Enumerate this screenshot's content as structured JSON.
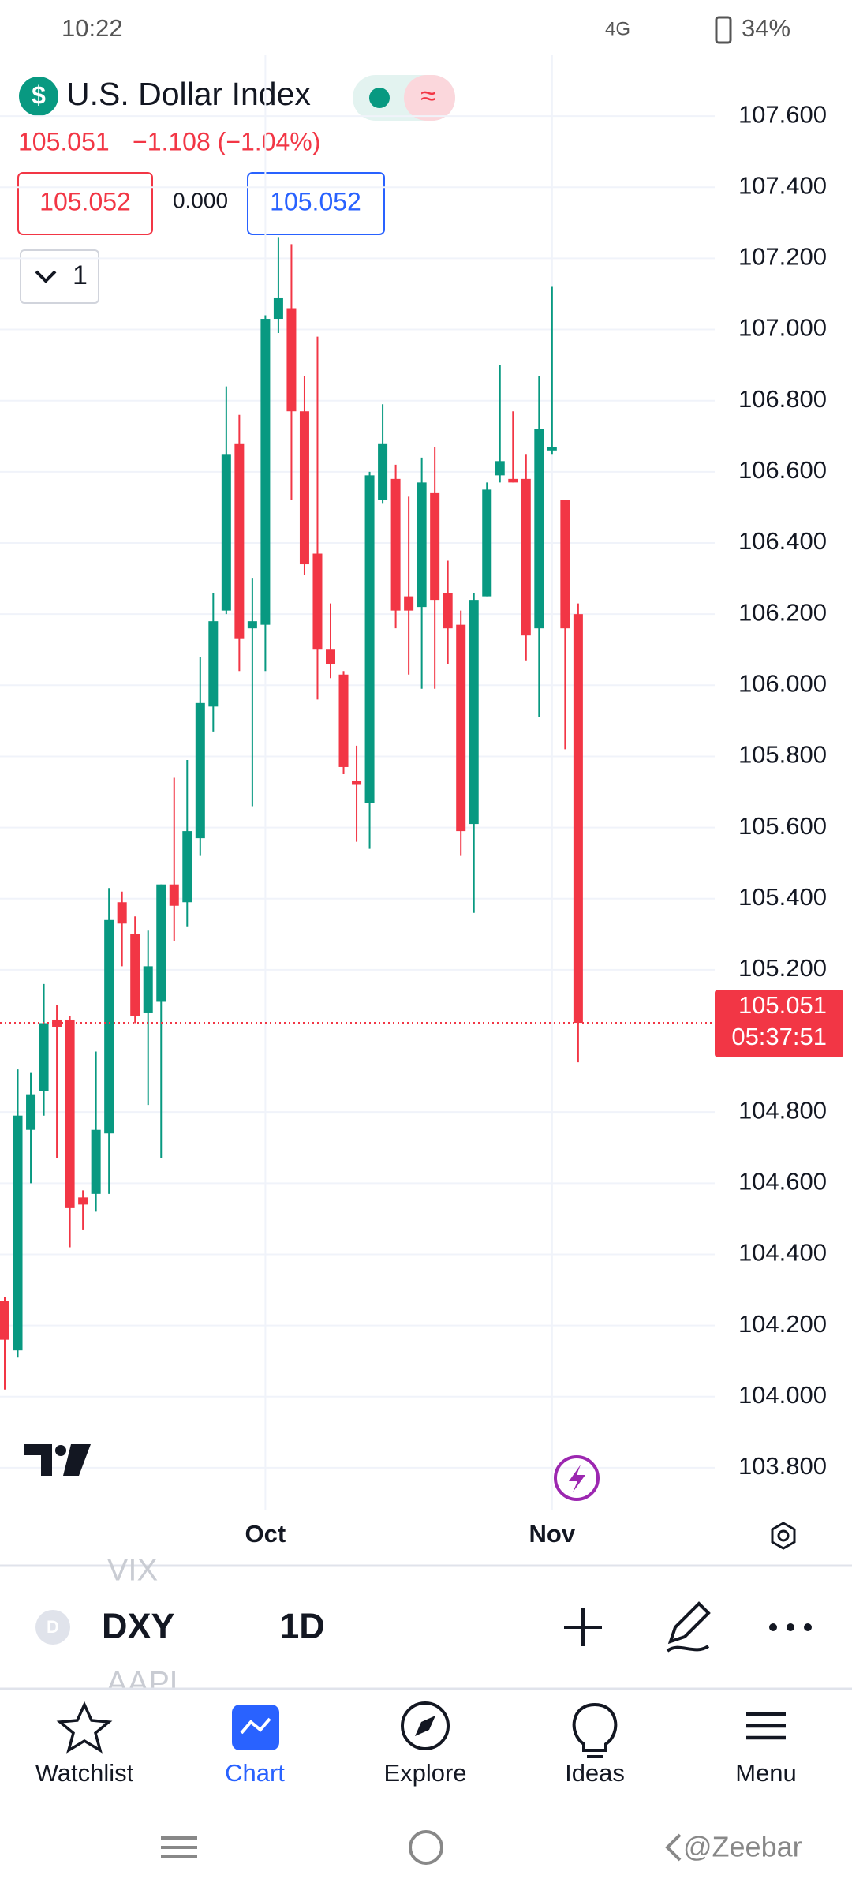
{
  "status_bar": {
    "time": "10:22",
    "network": "4G",
    "battery": "34%"
  },
  "header": {
    "title": "U.S. Dollar Index",
    "last": "105.051",
    "change": "−1.108 (−1.04%)",
    "bid": "105.052",
    "spread": "0.000",
    "ask": "105.052",
    "indicator_count": "1"
  },
  "chart_data": {
    "type": "candlestick",
    "categories": [
      null,
      null,
      null,
      null,
      null,
      null,
      null,
      null,
      null,
      null,
      null,
      null,
      null,
      null,
      null,
      null,
      null,
      null,
      null,
      null,
      "Oct",
      null,
      null,
      null,
      null,
      null,
      null,
      null,
      null,
      null,
      null,
      null,
      null,
      null,
      null,
      null,
      null,
      null,
      null,
      null,
      null,
      null,
      "Nov",
      null,
      null
    ],
    "open": [
      104.27,
      104.13,
      104.75,
      104.86,
      105.06,
      105.06,
      104.56,
      104.57,
      104.74,
      105.39,
      105.3,
      105.08,
      105.11,
      105.44,
      105.39,
      105.57,
      105.94,
      106.21,
      106.68,
      106.16,
      106.17,
      107.03,
      107.06,
      106.77,
      106.37,
      106.1,
      106.03,
      105.73,
      105.67,
      106.52,
      106.58,
      106.25,
      106.22,
      106.54,
      106.26,
      106.17,
      105.61,
      106.25,
      106.59,
      106.58,
      106.58,
      106.16,
      106.66,
      106.52,
      106.2
    ],
    "high": [
      104.28,
      104.92,
      104.91,
      105.16,
      105.1,
      105.07,
      104.58,
      104.97,
      105.43,
      105.42,
      105.35,
      105.31,
      105.44,
      105.74,
      105.79,
      106.08,
      106.26,
      106.84,
      106.76,
      106.3,
      107.04,
      107.26,
      107.24,
      106.87,
      106.98,
      106.23,
      106.04,
      105.83,
      106.6,
      106.79,
      106.62,
      106.53,
      106.64,
      106.67,
      106.35,
      106.21,
      106.26,
      106.57,
      106.9,
      106.77,
      106.65,
      106.87,
      107.12,
      106.52,
      106.23
    ],
    "low": [
      104.02,
      104.11,
      104.6,
      104.79,
      104.67,
      104.42,
      104.47,
      104.52,
      104.57,
      105.21,
      105.05,
      104.82,
      104.67,
      105.28,
      105.32,
      105.52,
      105.87,
      106.2,
      106.04,
      105.66,
      106.04,
      106.99,
      106.52,
      106.31,
      105.96,
      106.02,
      105.75,
      105.56,
      105.54,
      106.51,
      106.16,
      106.03,
      105.99,
      105.99,
      106.06,
      105.52,
      105.36,
      106.25,
      106.57,
      106.57,
      106.07,
      105.91,
      106.65,
      105.82,
      104.94
    ],
    "close": [
      104.16,
      104.79,
      104.85,
      105.05,
      105.04,
      104.53,
      104.54,
      104.75,
      105.34,
      105.33,
      105.07,
      105.21,
      105.44,
      105.38,
      105.59,
      105.95,
      106.18,
      106.65,
      106.13,
      106.18,
      107.03,
      107.09,
      106.77,
      106.34,
      106.1,
      106.06,
      105.77,
      105.72,
      106.59,
      106.68,
      106.21,
      106.21,
      106.57,
      106.24,
      106.16,
      105.59,
      106.24,
      106.55,
      106.63,
      106.57,
      106.14,
      106.72,
      106.67,
      106.16,
      105.051
    ],
    "up_color": "#089981",
    "down_color": "#f23645",
    "ylim": [
      103.7,
      107.74
    ],
    "yticks": [
      {
        "value": 107.6,
        "label": "107.600"
      },
      {
        "value": 107.4,
        "label": "107.400"
      },
      {
        "value": 107.2,
        "label": "107.200"
      },
      {
        "value": 107.0,
        "label": "107.000"
      },
      {
        "value": 106.8,
        "label": "106.800"
      },
      {
        "value": 106.6,
        "label": "106.600"
      },
      {
        "value": 106.4,
        "label": "106.400"
      },
      {
        "value": 106.2,
        "label": "106.200"
      },
      {
        "value": 106.0,
        "label": "106.000"
      },
      {
        "value": 105.8,
        "label": "105.800"
      },
      {
        "value": 105.6,
        "label": "105.600"
      },
      {
        "value": 105.4,
        "label": "105.400"
      },
      {
        "value": 105.2,
        "label": "105.200"
      },
      {
        "value": 104.8,
        "label": "104.800"
      },
      {
        "value": 104.6,
        "label": "104.600"
      },
      {
        "value": 104.4,
        "label": "104.400"
      },
      {
        "value": 104.2,
        "label": "104.200"
      },
      {
        "value": 104.0,
        "label": "104.000"
      },
      {
        "value": 103.8,
        "label": "103.800"
      }
    ],
    "grid": true,
    "last_price": {
      "value": 105.051,
      "label": "105.051"
    },
    "countdown": "05:37:51"
  },
  "toolbar": {
    "prev_symbol": "VIX",
    "symbol": "DXY",
    "interval": "1D",
    "next_symbol": "AAPL",
    "symbol_badge": "D"
  },
  "nav": [
    "Watchlist",
    "Chart",
    "Explore",
    "Ideas",
    "Menu"
  ],
  "watermark": "@Zeebar"
}
